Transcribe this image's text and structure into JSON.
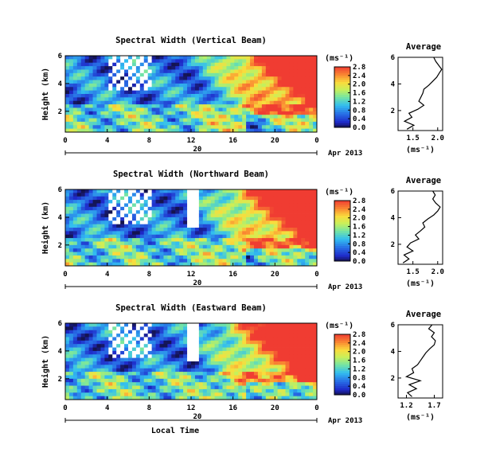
{
  "figure": {
    "date_label": "Apr 2013",
    "bottom_xlabel": "Local Time",
    "ylabel": "Height (km)",
    "colorbar_unit": "(ms⁻¹)",
    "avg_title": "Average",
    "avg_xlabel": "(ms⁻¹)"
  },
  "chart_data": [
    {
      "type": "heatmap",
      "title": "Spectral Width (Vertical Beam)",
      "xlabel": "",
      "ylabel": "Height (km)",
      "x_ticks": [
        "0",
        "4",
        "8",
        "12",
        "16",
        "20",
        "0"
      ],
      "y_ticks": [
        "2",
        "4",
        "6"
      ],
      "date_ticks": [
        "20"
      ],
      "xlim_hours": [
        0,
        24
      ],
      "ylim_km": [
        0.5,
        6
      ],
      "colorbar": {
        "unit": "(ms⁻¹)",
        "ticks": [
          "0.0",
          "0.4",
          "0.8",
          "1.2",
          "1.6",
          "2.0",
          "2.4",
          "2.8"
        ],
        "range": [
          0,
          2.8
        ]
      },
      "average_profile": {
        "title": "Average",
        "xlabel": "(ms⁻¹)",
        "x_ticks": [
          "1.5",
          "2.0"
        ],
        "xlim": [
          1.2,
          2.1
        ],
        "y_ticks": [
          "2",
          "4",
          "6"
        ],
        "height_km": [
          0.6,
          0.9,
          1.2,
          1.5,
          1.8,
          2.1,
          2.4,
          2.7,
          3.0,
          3.3,
          3.6,
          3.9,
          4.2,
          4.5,
          4.8,
          5.1,
          5.4,
          5.7,
          6.0
        ],
        "values": [
          1.38,
          1.52,
          1.33,
          1.48,
          1.42,
          1.6,
          1.72,
          1.62,
          1.66,
          1.7,
          1.72,
          1.82,
          1.9,
          1.98,
          2.03,
          2.08,
          2.02,
          1.96,
          1.92
        ]
      }
    },
    {
      "type": "heatmap",
      "title": "Spectral Width (Northward Beam)",
      "xlabel": "",
      "ylabel": "Height (km)",
      "x_ticks": [
        "0",
        "4",
        "8",
        "12",
        "16",
        "20",
        "0"
      ],
      "y_ticks": [
        "2",
        "4",
        "6"
      ],
      "date_ticks": [
        "20"
      ],
      "xlim_hours": [
        0,
        24
      ],
      "ylim_km": [
        0.5,
        6
      ],
      "colorbar": {
        "unit": "(ms⁻¹)",
        "ticks": [
          "0.0",
          "0.4",
          "0.8",
          "1.2",
          "1.6",
          "2.0",
          "2.4",
          "2.8"
        ],
        "range": [
          0,
          2.8
        ]
      },
      "average_profile": {
        "title": "Average",
        "xlabel": "(ms⁻¹)",
        "x_ticks": [
          "1.5",
          "2.0"
        ],
        "xlim": [
          1.2,
          2.1
        ],
        "y_ticks": [
          "2",
          "4",
          "6"
        ],
        "height_km": [
          0.6,
          0.9,
          1.2,
          1.5,
          1.8,
          2.1,
          2.4,
          2.7,
          3.0,
          3.3,
          3.6,
          3.9,
          4.2,
          4.5,
          4.8,
          5.1,
          5.4,
          5.7,
          6.0
        ],
        "values": [
          1.3,
          1.42,
          1.32,
          1.5,
          1.38,
          1.45,
          1.62,
          1.55,
          1.65,
          1.74,
          1.7,
          1.8,
          1.92,
          2.0,
          2.05,
          1.96,
          1.9,
          1.95,
          1.9
        ]
      }
    },
    {
      "type": "heatmap",
      "title": "Spectral Width (Eastward Beam)",
      "xlabel": "Local Time",
      "ylabel": "Height (km)",
      "x_ticks": [
        "0",
        "4",
        "8",
        "12",
        "16",
        "20",
        "0"
      ],
      "y_ticks": [
        "2",
        "4",
        "6"
      ],
      "date_ticks": [
        "20"
      ],
      "xlim_hours": [
        0,
        24
      ],
      "ylim_km": [
        0.5,
        6
      ],
      "colorbar": {
        "unit": "(ms⁻¹)",
        "ticks": [
          "0.0",
          "0.4",
          "0.8",
          "1.2",
          "1.6",
          "2.0",
          "2.4",
          "2.8"
        ],
        "range": [
          0,
          2.8
        ]
      },
      "average_profile": {
        "title": "Average",
        "xlabel": "(ms⁻¹)",
        "x_ticks": [
          "1.2",
          "1.7"
        ],
        "xlim": [
          1.05,
          1.85
        ],
        "y_ticks": [
          "2",
          "4",
          "6"
        ],
        "height_km": [
          0.6,
          0.9,
          1.2,
          1.5,
          1.8,
          2.1,
          2.4,
          2.7,
          3.0,
          3.3,
          3.6,
          3.9,
          4.2,
          4.5,
          4.8,
          5.1,
          5.4,
          5.7,
          6.0
        ],
        "values": [
          1.3,
          1.22,
          1.38,
          1.25,
          1.45,
          1.2,
          1.33,
          1.3,
          1.4,
          1.45,
          1.5,
          1.55,
          1.62,
          1.7,
          1.72,
          1.65,
          1.7,
          1.6,
          1.66
        ]
      }
    }
  ]
}
